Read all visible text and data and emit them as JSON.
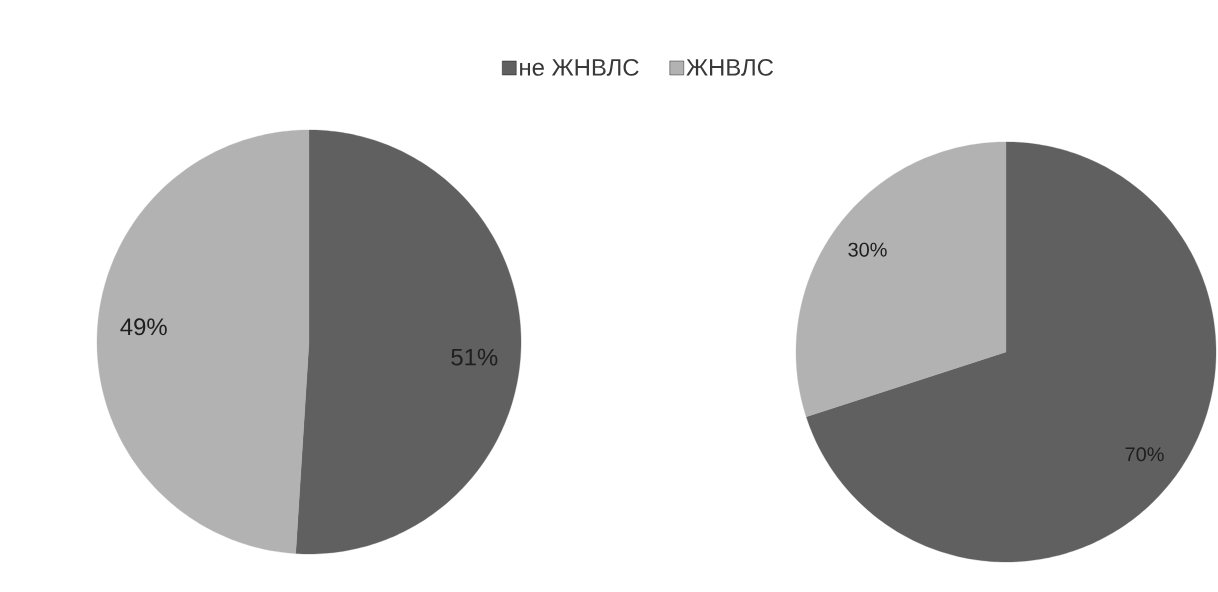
{
  "chart_data": [
    {
      "type": "pie",
      "categories": [
        "не ЖНВЛС",
        "ЖНВЛС"
      ],
      "values": [
        51,
        49
      ],
      "colors": [
        "#606060",
        "#b2b2b2"
      ],
      "value_labels": [
        "51%",
        "49%"
      ],
      "legend": "top"
    },
    {
      "type": "pie",
      "categories": [
        null,
        null
      ],
      "values": [
        70,
        30
      ],
      "colors": [
        "#606060",
        "#b2b2b2"
      ],
      "value_labels": [
        "70%",
        "30%"
      ]
    }
  ]
}
